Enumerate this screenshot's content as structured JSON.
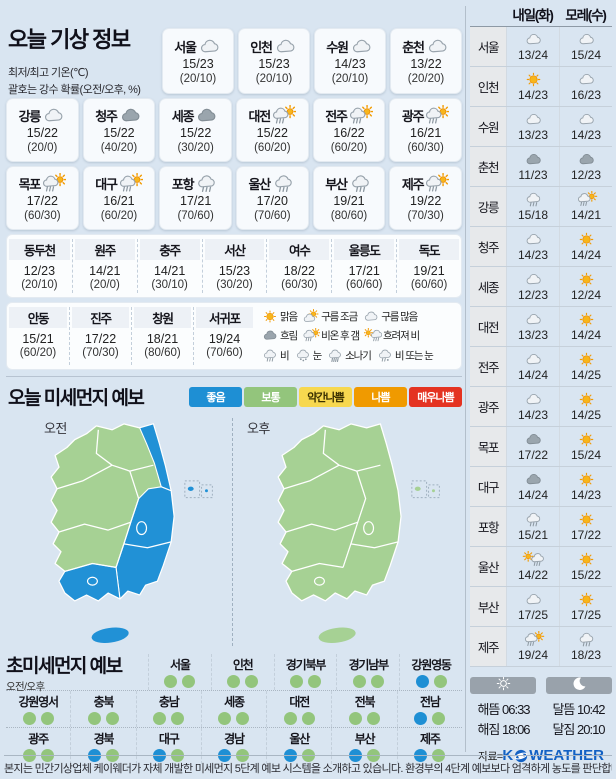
{
  "weather": {
    "title": "오늘 기상 정보",
    "sub1": "최저/최고 기온(℃)",
    "sub2": "괄호는 강수 확률(오전/오후, %)",
    "row1": [
      {
        "name": "서울",
        "icon": "cloud_light",
        "temp": "15/23",
        "prob": "(20/10)"
      },
      {
        "name": "인천",
        "icon": "cloud_light",
        "temp": "15/23",
        "prob": "(20/10)"
      },
      {
        "name": "수원",
        "icon": "cloud_light",
        "temp": "14/23",
        "prob": "(20/10)"
      },
      {
        "name": "춘천",
        "icon": "cloud_light",
        "temp": "13/22",
        "prob": "(20/20)"
      }
    ],
    "row2": [
      {
        "name": "강릉",
        "icon": "cloud_light",
        "temp": "15/22",
        "prob": "(20/0)"
      },
      {
        "name": "청주",
        "icon": "cloud_dark",
        "temp": "15/22",
        "prob": "(40/20)"
      },
      {
        "name": "세종",
        "icon": "cloud_dark",
        "temp": "15/22",
        "prob": "(30/20)"
      },
      {
        "name": "대전",
        "icon": "rain_sun",
        "temp": "15/22",
        "prob": "(60/20)"
      },
      {
        "name": "전주",
        "icon": "rain_sun",
        "temp": "16/22",
        "prob": "(60/20)"
      },
      {
        "name": "광주",
        "icon": "rain_sun",
        "temp": "16/21",
        "prob": "(60/30)"
      }
    ],
    "row3": [
      {
        "name": "목포",
        "icon": "rain_sun",
        "temp": "17/22",
        "prob": "(60/30)"
      },
      {
        "name": "대구",
        "icon": "rain_sun",
        "temp": "16/21",
        "prob": "(60/20)"
      },
      {
        "name": "포항",
        "icon": "rain",
        "temp": "17/21",
        "prob": "(70/60)"
      },
      {
        "name": "울산",
        "icon": "rain",
        "temp": "17/20",
        "prob": "(70/60)"
      },
      {
        "name": "부산",
        "icon": "rain",
        "temp": "19/21",
        "prob": "(80/60)"
      },
      {
        "name": "제주",
        "icon": "rain_sun",
        "temp": "19/22",
        "prob": "(70/30)"
      }
    ],
    "minor1": [
      {
        "name": "동두천",
        "temp": "12/23",
        "prob": "(20/10)"
      },
      {
        "name": "원주",
        "temp": "14/21",
        "prob": "(20/0)"
      },
      {
        "name": "충주",
        "temp": "14/21",
        "prob": "(30/10)"
      },
      {
        "name": "서산",
        "temp": "15/23",
        "prob": "(30/20)"
      },
      {
        "name": "여수",
        "temp": "18/22",
        "prob": "(60/30)"
      },
      {
        "name": "울릉도",
        "temp": "17/21",
        "prob": "(60/60)"
      },
      {
        "name": "독도",
        "temp": "19/21",
        "prob": "(60/60)"
      }
    ],
    "minor2": [
      {
        "name": "안동",
        "temp": "15/21",
        "prob": "(60/20)"
      },
      {
        "name": "진주",
        "temp": "17/22",
        "prob": "(70/30)"
      },
      {
        "name": "창원",
        "temp": "18/21",
        "prob": "(80/60)"
      },
      {
        "name": "서귀포",
        "temp": "19/24",
        "prob": "(70/60)"
      }
    ],
    "legend_row1": [
      {
        "icon": "sun",
        "label": "맑음"
      },
      {
        "icon": "partly",
        "label": "구름 조금"
      },
      {
        "icon": "cloud_light",
        "label": "구름 많음"
      }
    ],
    "legend_row2": [
      {
        "icon": "cloud_dark",
        "label": "흐림"
      },
      {
        "icon": "rain_sun",
        "label": "비온 후 갬"
      },
      {
        "icon": "sun_rain",
        "label": "흐려져 비"
      }
    ],
    "legend_row3": [
      {
        "icon": "rain",
        "label": "비"
      },
      {
        "icon": "snow",
        "label": "눈"
      },
      {
        "icon": "shower",
        "label": "소나기"
      },
      {
        "icon": "rain_snow",
        "label": "비 또는 눈"
      }
    ]
  },
  "dust": {
    "title": "오늘 미세먼지 예보",
    "am_label": "오전",
    "pm_label": "오후",
    "levels": [
      {
        "label": "좋음",
        "color": "#1e8fd4",
        "text": "#ffffff"
      },
      {
        "label": "보통",
        "color": "#93c57c",
        "text": "#ffffff"
      },
      {
        "label": "약간나쁨",
        "color": "#f7d84f",
        "text": "#3a3000"
      },
      {
        "label": "나쁨",
        "color": "#f09a00",
        "text": "#ffffff"
      },
      {
        "label": "매우나쁨",
        "color": "#e43322",
        "text": "#ffffff"
      }
    ],
    "map_colors": {
      "good": "#2191d6",
      "normal": "#a6d194"
    }
  },
  "fine": {
    "title": "초미세먼지 예보",
    "sub": "오전/오후",
    "row1": [
      {
        "name": "서울",
        "am": "normal",
        "pm": "normal"
      },
      {
        "name": "인천",
        "am": "normal",
        "pm": "normal"
      },
      {
        "name": "경기북부",
        "am": "normal",
        "pm": "normal"
      },
      {
        "name": "경기남부",
        "am": "normal",
        "pm": "normal"
      },
      {
        "name": "강원영동",
        "am": "good",
        "pm": "normal"
      }
    ],
    "row2": [
      {
        "name": "강원영서",
        "am": "normal",
        "pm": "normal"
      },
      {
        "name": "충북",
        "am": "normal",
        "pm": "normal"
      },
      {
        "name": "충남",
        "am": "normal",
        "pm": "normal"
      },
      {
        "name": "세종",
        "am": "normal",
        "pm": "normal"
      },
      {
        "name": "대전",
        "am": "normal",
        "pm": "normal"
      },
      {
        "name": "전북",
        "am": "normal",
        "pm": "normal"
      },
      {
        "name": "전남",
        "am": "good",
        "pm": "normal"
      }
    ],
    "row3": [
      {
        "name": "광주",
        "am": "normal",
        "pm": "normal"
      },
      {
        "name": "경북",
        "am": "good",
        "pm": "normal"
      },
      {
        "name": "대구",
        "am": "good",
        "pm": "normal"
      },
      {
        "name": "경남",
        "am": "good",
        "pm": "normal"
      },
      {
        "name": "울산",
        "am": "good",
        "pm": "normal"
      },
      {
        "name": "부산",
        "am": "good",
        "pm": "normal"
      },
      {
        "name": "제주",
        "am": "good",
        "pm": "normal"
      }
    ]
  },
  "forecast": {
    "col1": "내일(화)",
    "col2": "모레(수)",
    "rows": [
      {
        "name": "서울",
        "d1_icon": "cloud_light",
        "d1_temp": "13/24",
        "d2_icon": "cloud_light",
        "d2_temp": "15/24"
      },
      {
        "name": "인천",
        "d1_icon": "sun",
        "d1_temp": "14/23",
        "d2_icon": "cloud_light",
        "d2_temp": "16/23"
      },
      {
        "name": "수원",
        "d1_icon": "cloud_light",
        "d1_temp": "13/23",
        "d2_icon": "cloud_light",
        "d2_temp": "14/23"
      },
      {
        "name": "춘천",
        "d1_icon": "cloud_dark",
        "d1_temp": "11/23",
        "d2_icon": "cloud_dark",
        "d2_temp": "12/23"
      },
      {
        "name": "강릉",
        "d1_icon": "rain",
        "d1_temp": "15/18",
        "d2_icon": "rain_sun",
        "d2_temp": "14/21"
      },
      {
        "name": "청주",
        "d1_icon": "cloud_light",
        "d1_temp": "14/23",
        "d2_icon": "sun",
        "d2_temp": "14/24"
      },
      {
        "name": "세종",
        "d1_icon": "cloud_light",
        "d1_temp": "12/23",
        "d2_icon": "sun",
        "d2_temp": "12/24"
      },
      {
        "name": "대전",
        "d1_icon": "cloud_light",
        "d1_temp": "13/23",
        "d2_icon": "sun",
        "d2_temp": "14/24"
      },
      {
        "name": "전주",
        "d1_icon": "cloud_light",
        "d1_temp": "14/24",
        "d2_icon": "sun",
        "d2_temp": "14/25"
      },
      {
        "name": "광주",
        "d1_icon": "cloud_light",
        "d1_temp": "14/23",
        "d2_icon": "sun",
        "d2_temp": "14/25"
      },
      {
        "name": "목포",
        "d1_icon": "cloud_dark",
        "d1_temp": "17/22",
        "d2_icon": "sun",
        "d2_temp": "15/24"
      },
      {
        "name": "대구",
        "d1_icon": "cloud_dark",
        "d1_temp": "14/24",
        "d2_icon": "sun",
        "d2_temp": "14/23"
      },
      {
        "name": "포항",
        "d1_icon": "rain",
        "d1_temp": "15/21",
        "d2_icon": "sun",
        "d2_temp": "17/22"
      },
      {
        "name": "울산",
        "d1_icon": "sun_rain",
        "d1_temp": "14/22",
        "d2_icon": "sun",
        "d2_temp": "15/22"
      },
      {
        "name": "부산",
        "d1_icon": "cloud_light",
        "d1_temp": "17/25",
        "d2_icon": "sun",
        "d2_temp": "17/25"
      },
      {
        "name": "제주",
        "d1_icon": "rain_sun",
        "d1_temp": "19/24",
        "d2_icon": "rain",
        "d2_temp": "18/23"
      }
    ]
  },
  "sun_moon": {
    "sun_lines": [
      {
        "label": "해뜸",
        "time": "06:33"
      },
      {
        "label": "해짐",
        "time": "18:06"
      }
    ],
    "moon_lines": [
      {
        "label": "달뜸",
        "time": "10:42"
      },
      {
        "label": "달짐",
        "time": "20:10"
      }
    ]
  },
  "source": {
    "prefix": "자료=",
    "k": "K",
    "rest": "WEATHER"
  },
  "footer": "본지는 민간기상업체 케이웨더가 자체 개발한 미세먼지 5단계 예보 시스템을 소개하고 있습니다. 환경부의 4단계 예보보다 엄격하게 농도를 판단합니다."
}
